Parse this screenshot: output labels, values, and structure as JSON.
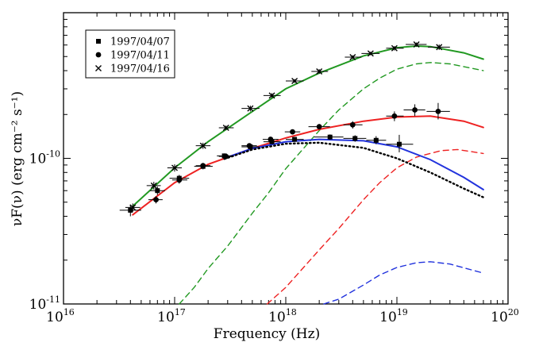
{
  "chart_data": {
    "type": "scatter",
    "title": "",
    "xlabel": "Frequency (Hz)",
    "ylabel": "νF(ν) (erg cm⁻² s⁻¹)",
    "xscale": "log",
    "yscale": "log",
    "xlim": [
      1e+16,
      1e+20
    ],
    "ylim": [
      1e-11,
      1e-09
    ],
    "x_ticks": [
      {
        "value": 1e+16,
        "base": "10",
        "exp": "16"
      },
      {
        "value": 1e+17,
        "base": "10",
        "exp": "17"
      },
      {
        "value": 1e+18,
        "base": "10",
        "exp": "18"
      },
      {
        "value": 1e+19,
        "base": "10",
        "exp": "19"
      },
      {
        "value": 1e+20,
        "base": "10",
        "exp": "20"
      }
    ],
    "y_ticks": [
      {
        "value": 1e-11,
        "base": "10",
        "exp": "-11"
      },
      {
        "value": 1e-10,
        "base": "10",
        "exp": "-10"
      }
    ],
    "legend": {
      "position": "top-left",
      "entries": [
        {
          "label": "1997/04/07",
          "marker": "square"
        },
        {
          "label": "1997/04/11",
          "marker": "circle"
        },
        {
          "label": "1997/04/16",
          "marker": "cross"
        }
      ]
    },
    "series": [
      {
        "name": "1997/04/07",
        "marker": "square",
        "color": "#000000",
        "points": [
          {
            "x": 4e+16,
            "y": 4.4e-11,
            "xlo": 3.2e+16,
            "xhi": 5e+16,
            "ylo": 4e-11,
            "yhi": 4.8e-11
          },
          {
            "x": 7e+16,
            "y": 6e-11,
            "xlo": 6e+16,
            "xhi": 8.2e+16,
            "ylo": 5.6e-11,
            "yhi": 6.4e-11
          },
          {
            "x": 1.1e+17,
            "y": 7.3e-11,
            "xlo": 9e+16,
            "xhi": 1.35e+17,
            "ylo": 6.9e-11,
            "yhi": 7.7e-11
          },
          {
            "x": 1.8e+17,
            "y": 8.8e-11,
            "xlo": 1.5e+17,
            "xhi": 2.2e+17,
            "ylo": 8.4e-11,
            "yhi": 9.2e-11
          },
          {
            "x": 2.8e+17,
            "y": 1.04e-10,
            "xlo": 2.4e+17,
            "xhi": 3.3e+17,
            "ylo": 1e-10,
            "yhi": 1.08e-10
          },
          {
            "x": 4.8e+17,
            "y": 1.2e-10,
            "xlo": 4e+17,
            "xhi": 5.8e+17,
            "ylo": 1.16e-10,
            "yhi": 1.24e-10
          },
          {
            "x": 7.5e+17,
            "y": 1.3e-10,
            "xlo": 6.3e+17,
            "xhi": 9e+17,
            "ylo": 1.25e-10,
            "yhi": 1.35e-10
          },
          {
            "x": 1.2e+18,
            "y": 1.35e-10,
            "xlo": 1e+18,
            "xhi": 1.45e+18,
            "ylo": 1.3e-10,
            "yhi": 1.4e-10
          },
          {
            "x": 2.5e+18,
            "y": 1.4e-10,
            "xlo": 1.8e+18,
            "xhi": 3.3e+18,
            "ylo": 1.34e-10,
            "yhi": 1.46e-10
          },
          {
            "x": 4.2e+18,
            "y": 1.37e-10,
            "xlo": 3.3e+18,
            "xhi": 5.3e+18,
            "ylo": 1.3e-10,
            "yhi": 1.44e-10
          },
          {
            "x": 6.5e+18,
            "y": 1.33e-10,
            "xlo": 5.3e+18,
            "xhi": 8e+18,
            "ylo": 1.25e-10,
            "yhi": 1.42e-10
          },
          {
            "x": 1.05e+19,
            "y": 1.25e-10,
            "xlo": 8e+18,
            "xhi": 1.4e+19,
            "ylo": 1.1e-10,
            "yhi": 1.45e-10
          }
        ]
      },
      {
        "name": "1997/04/11",
        "marker": "circle",
        "color": "#000000",
        "points": [
          {
            "x": 6.8e+16,
            "y": 5.2e-11,
            "xlo": 5.8e+16,
            "xhi": 7.8e+16,
            "ylo": 4.9e-11,
            "yhi": 5.5e-11
          },
          {
            "x": 1.1e+17,
            "y": 7.1e-11,
            "xlo": 9.5e+16,
            "xhi": 1.3e+17,
            "ylo": 6.7e-11,
            "yhi": 7.5e-11
          },
          {
            "x": 1.8e+17,
            "y": 8.9e-11,
            "xlo": 1.55e+17,
            "xhi": 2.1e+17,
            "ylo": 8.5e-11,
            "yhi": 9.3e-11
          },
          {
            "x": 2.9e+17,
            "y": 1.03e-10,
            "xlo": 2.5e+17,
            "xhi": 3.4e+17,
            "ylo": 9.9e-11,
            "yhi": 1.07e-10
          },
          {
            "x": 4.7e+17,
            "y": 1.22e-10,
            "xlo": 4e+17,
            "xhi": 5.5e+17,
            "ylo": 1.18e-10,
            "yhi": 1.26e-10
          },
          {
            "x": 7.3e+17,
            "y": 1.35e-10,
            "xlo": 6.2e+17,
            "xhi": 8.6e+17,
            "ylo": 1.3e-10,
            "yhi": 1.4e-10
          },
          {
            "x": 1.15e+18,
            "y": 1.52e-10,
            "xlo": 9.8e+17,
            "xhi": 1.35e+18,
            "ylo": 1.46e-10,
            "yhi": 1.58e-10
          },
          {
            "x": 2e+18,
            "y": 1.65e-10,
            "xlo": 1.6e+18,
            "xhi": 2.5e+18,
            "ylo": 1.58e-10,
            "yhi": 1.72e-10
          },
          {
            "x": 4e+18,
            "y": 1.7e-10,
            "xlo": 3.3e+18,
            "xhi": 4.9e+18,
            "ylo": 1.6e-10,
            "yhi": 1.8e-10
          },
          {
            "x": 9.5e+18,
            "y": 1.95e-10,
            "xlo": 8e+18,
            "xhi": 1.15e+19,
            "ylo": 1.8e-10,
            "yhi": 2.1e-10
          },
          {
            "x": 1.45e+19,
            "y": 2.15e-10,
            "xlo": 1.15e+19,
            "xhi": 1.8e+19,
            "ylo": 1.95e-10,
            "yhi": 2.35e-10
          },
          {
            "x": 2.35e+19,
            "y": 2.1e-10,
            "xlo": 1.85e+19,
            "xhi": 3e+19,
            "ylo": 1.85e-10,
            "yhi": 2.4e-10
          }
        ]
      },
      {
        "name": "1997/04/16",
        "marker": "cross",
        "color": "#000000",
        "points": [
          {
            "x": 4.2e+16,
            "y": 4.6e-11,
            "xlo": 3.6e+16,
            "xhi": 4.9e+16,
            "ylo": 4.3e-11,
            "yhi": 4.9e-11
          },
          {
            "x": 6.5e+16,
            "y": 6.5e-11,
            "xlo": 5.6e+16,
            "xhi": 7.5e+16,
            "ylo": 6.1e-11,
            "yhi": 6.9e-11
          },
          {
            "x": 1e+17,
            "y": 8.6e-11,
            "xlo": 8.6e+16,
            "xhi": 1.16e+17,
            "ylo": 8.1e-11,
            "yhi": 9.1e-11
          },
          {
            "x": 1.8e+17,
            "y": 1.22e-10,
            "xlo": 1.55e+17,
            "xhi": 2.1e+17,
            "ylo": 1.16e-10,
            "yhi": 1.28e-10
          },
          {
            "x": 2.9e+17,
            "y": 1.62e-10,
            "xlo": 2.5e+17,
            "xhi": 3.4e+17,
            "ylo": 1.56e-10,
            "yhi": 1.68e-10
          },
          {
            "x": 4.8e+17,
            "y": 2.2e-10,
            "xlo": 4e+17,
            "xhi": 5.8e+17,
            "ylo": 2.1e-10,
            "yhi": 2.3e-10
          },
          {
            "x": 7.5e+17,
            "y": 2.7e-10,
            "xlo": 6.3e+17,
            "xhi": 9e+17,
            "ylo": 2.6e-10,
            "yhi": 2.8e-10
          },
          {
            "x": 1.2e+18,
            "y": 3.4e-10,
            "xlo": 1e+18,
            "xhi": 1.45e+18,
            "ylo": 3.3e-10,
            "yhi": 3.5e-10
          },
          {
            "x": 2e+18,
            "y": 3.95e-10,
            "xlo": 1.7e+18,
            "xhi": 2.4e+18,
            "ylo": 3.8e-10,
            "yhi": 4.1e-10
          },
          {
            "x": 4e+18,
            "y": 4.95e-10,
            "xlo": 3.4e+18,
            "xhi": 4.8e+18,
            "ylo": 4.8e-10,
            "yhi": 5.1e-10
          },
          {
            "x": 5.8e+18,
            "y": 5.25e-10,
            "xlo": 4.8e+18,
            "xhi": 7e+18,
            "ylo": 5.1e-10,
            "yhi": 5.4e-10
          },
          {
            "x": 9.5e+18,
            "y": 5.7e-10,
            "xlo": 8e+18,
            "xhi": 1.15e+19,
            "ylo": 5.5e-10,
            "yhi": 5.9e-10
          },
          {
            "x": 1.5e+19,
            "y": 6.05e-10,
            "xlo": 1.2e+19,
            "xhi": 1.85e+19,
            "ylo": 5.85e-10,
            "yhi": 6.25e-10
          },
          {
            "x": 2.4e+19,
            "y": 5.8e-10,
            "xlo": 1.9e+19,
            "xhi": 3e+19,
            "ylo": 5.55e-10,
            "yhi": 6.05e-10
          }
        ]
      }
    ],
    "model_curves": [
      {
        "name": "green-total",
        "color": "#229922",
        "dash": "solid",
        "points": [
          [
            4.2e+16,
            4.7e-11
          ],
          [
            1e+17,
            8.6e-11
          ],
          [
            2e+17,
            1.3e-10
          ],
          [
            5e+17,
            2.1e-10
          ],
          [
            1e+18,
            3e-10
          ],
          [
            2e+18,
            3.85e-10
          ],
          [
            5e+18,
            5.05e-10
          ],
          [
            1e+19,
            5.75e-10
          ],
          [
            1.5e+19,
            5.9e-10
          ],
          [
            2e+19,
            5.85e-10
          ],
          [
            4e+19,
            5.3e-10
          ],
          [
            6e+19,
            4.8e-10
          ]
        ]
      },
      {
        "name": "green-compton",
        "color": "#229922",
        "dash": "dashed",
        "points": [
          [
            1.1e+17,
            1e-11
          ],
          [
            1.5e+17,
            1.3e-11
          ],
          [
            2e+17,
            1.75e-11
          ],
          [
            3e+17,
            2.5e-11
          ],
          [
            5e+17,
            4.2e-11
          ],
          [
            7e+17,
            5.8e-11
          ],
          [
            1e+18,
            8.5e-11
          ],
          [
            2e+18,
            1.55e-10
          ],
          [
            3e+18,
            2.15e-10
          ],
          [
            5e+18,
            3e-10
          ],
          [
            7e+18,
            3.55e-10
          ],
          [
            1e+19,
            4.1e-10
          ],
          [
            1.5e+19,
            4.45e-10
          ],
          [
            2e+19,
            4.55e-10
          ],
          [
            3e+19,
            4.45e-10
          ],
          [
            6e+19,
            4e-10
          ]
        ]
      },
      {
        "name": "red-total",
        "color": "#ee2222",
        "dash": "solid",
        "points": [
          [
            4.2e+16,
            4.1e-11
          ],
          [
            1e+17,
            6.8e-11
          ],
          [
            2e+17,
            9.1e-11
          ],
          [
            5e+17,
            1.17e-10
          ],
          [
            1e+18,
            1.38e-10
          ],
          [
            2e+18,
            1.58e-10
          ],
          [
            5e+18,
            1.8e-10
          ],
          [
            1e+19,
            1.92e-10
          ],
          [
            2e+19,
            1.95e-10
          ],
          [
            4e+19,
            1.8e-10
          ],
          [
            6e+19,
            1.63e-10
          ]
        ]
      },
      {
        "name": "red-compton",
        "color": "#ee2222",
        "dash": "dashed",
        "points": [
          [
            6.8e+17,
            1e-11
          ],
          [
            1e+18,
            1.3e-11
          ],
          [
            2e+18,
            2.35e-11
          ],
          [
            3e+18,
            3.3e-11
          ],
          [
            5e+18,
            5.2e-11
          ],
          [
            7e+18,
            6.8e-11
          ],
          [
            1e+19,
            8.6e-11
          ],
          [
            1.5e+19,
            1.02e-10
          ],
          [
            2.5e+19,
            1.13e-10
          ],
          [
            3.5e+19,
            1.15e-10
          ],
          [
            6e+19,
            1.08e-10
          ]
        ]
      },
      {
        "name": "blue-total",
        "color": "#2233dd",
        "dash": "solid",
        "points": [
          [
            2.8e+17,
            1e-10
          ],
          [
            5e+17,
            1.17e-10
          ],
          [
            1e+18,
            1.3e-10
          ],
          [
            2e+18,
            1.35e-10
          ],
          [
            5e+18,
            1.32e-10
          ],
          [
            1e+19,
            1.2e-10
          ],
          [
            2e+19,
            9.8e-11
          ],
          [
            4e+19,
            7.4e-11
          ],
          [
            6e+19,
            6.1e-11
          ]
        ]
      },
      {
        "name": "blue-compton",
        "color": "#2233dd",
        "dash": "dashed",
        "points": [
          [
            2.2e+18,
            1e-11
          ],
          [
            3e+18,
            1.08e-11
          ],
          [
            5e+18,
            1.35e-11
          ],
          [
            7e+18,
            1.58e-11
          ],
          [
            1e+19,
            1.78e-11
          ],
          [
            1.5e+19,
            1.92e-11
          ],
          [
            2e+19,
            1.95e-11
          ],
          [
            3e+19,
            1.88e-11
          ],
          [
            6e+19,
            1.63e-11
          ]
        ]
      },
      {
        "name": "black-synchrotron",
        "color": "#000000",
        "dash": "dotted",
        "points": [
          [
            2.8e+17,
            9.9e-11
          ],
          [
            5e+17,
            1.15e-10
          ],
          [
            1e+18,
            1.26e-10
          ],
          [
            2e+18,
            1.28e-10
          ],
          [
            5e+18,
            1.18e-10
          ],
          [
            1e+19,
            1e-10
          ],
          [
            2e+19,
            8e-11
          ],
          [
            4e+19,
            6.2e-11
          ],
          [
            6e+19,
            5.4e-11
          ]
        ]
      }
    ]
  }
}
